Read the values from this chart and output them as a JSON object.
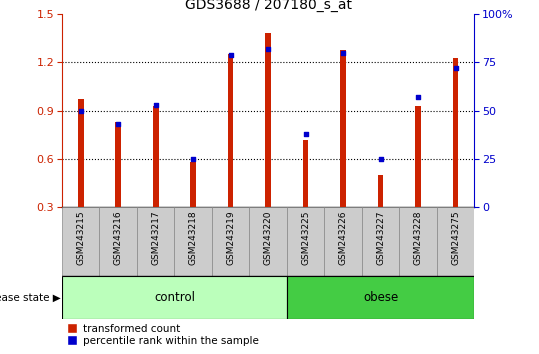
{
  "title": "GDS3688 / 207180_s_at",
  "samples": [
    "GSM243215",
    "GSM243216",
    "GSM243217",
    "GSM243218",
    "GSM243219",
    "GSM243220",
    "GSM243225",
    "GSM243226",
    "GSM243227",
    "GSM243228",
    "GSM243275"
  ],
  "red_values": [
    0.97,
    0.83,
    0.93,
    0.58,
    1.25,
    1.38,
    0.72,
    1.28,
    0.5,
    0.93,
    1.23
  ],
  "blue_values": [
    50,
    43,
    53,
    25,
    79,
    82,
    38,
    80,
    25,
    57,
    72
  ],
  "ylim_left": [
    0.3,
    1.5
  ],
  "ylim_right": [
    0,
    100
  ],
  "yticks_left": [
    0.3,
    0.6,
    0.9,
    1.2,
    1.5
  ],
  "yticks_right": [
    0,
    25,
    50,
    75,
    100
  ],
  "yticklabels_right": [
    "0",
    "25",
    "50",
    "75",
    "100%"
  ],
  "bar_color": "#cc2200",
  "dot_color": "#0000cc",
  "control_color": "#bbffbb",
  "obese_color": "#44cc44",
  "tick_label_bg": "#cccccc",
  "control_samples": 6,
  "obese_samples": 5,
  "bar_width": 0.15,
  "legend_red": "transformed count",
  "legend_blue": "percentile rank within the sample",
  "disease_state_label": "disease state",
  "control_label": "control",
  "obese_label": "obese"
}
